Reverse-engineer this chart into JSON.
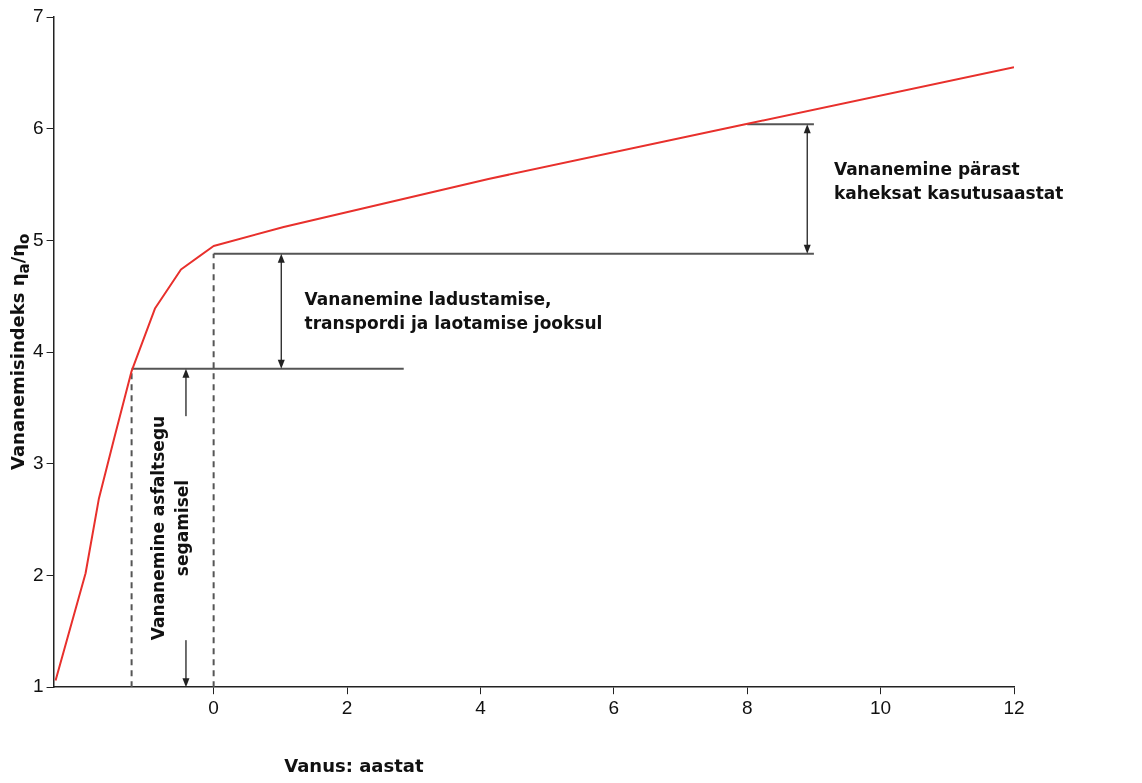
{
  "chart_data": {
    "type": "line",
    "xlabel": "Vanus: aastat",
    "ylabel": "Vananemisindeks η$_{a}$/η$_{o}$",
    "xlim": [
      -2.4,
      12
    ],
    "xticks": [
      0,
      2,
      4,
      6,
      8,
      10,
      12
    ],
    "ylim": [
      1,
      7
    ],
    "yticks": [
      1,
      2,
      3,
      4,
      5,
      6,
      7
    ],
    "grid": false,
    "legend": false,
    "marker": "none",
    "series": [
      {
        "color": "#e8302c",
        "x": [
          -2.37,
          -1.92,
          -1.72,
          -1.49,
          -1.23,
          -0.88,
          -0.49,
          0,
          1.05,
          4.12,
          7.97,
          12
        ],
        "values": [
          1.06,
          2.02,
          2.69,
          3.23,
          3.83,
          4.39,
          4.74,
          4.95,
          5.12,
          5.55,
          6.04,
          6.55
        ]
      },
      {
        "color": "#555555",
        "x": [
          -1.23,
          2.85
        ],
        "values": [
          3.85,
          3.85
        ]
      },
      {
        "color": "#555555",
        "x": [
          0,
          9
        ],
        "values": [
          4.88,
          4.88
        ]
      },
      {
        "color": "#555555",
        "x": [
          8,
          9
        ],
        "values": [
          6.04,
          6.04
        ]
      },
      {
        "color": "#555555",
        "line_style": "dashed",
        "x": [
          -1.23,
          -1.23
        ],
        "values": [
          1,
          3.85
        ]
      },
      {
        "color": "#555555",
        "line_style": "dashed",
        "x": [
          0,
          0
        ],
        "values": [
          1,
          4.88
        ]
      }
    ],
    "annotations": [
      "Vananemine pärast\nkaheksat kasutusaastat",
      "Vananemine ladustamise,\ntranspordi ja laotamise jooksul",
      "Vananemine asfaltsegu\nsegamisel"
    ]
  }
}
